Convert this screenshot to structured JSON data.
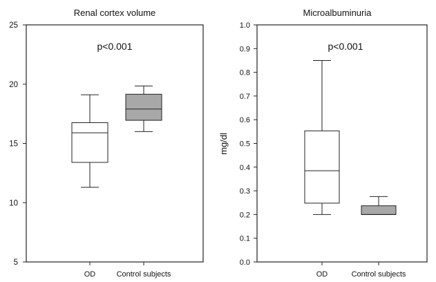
{
  "chart_data": [
    {
      "type": "boxplot",
      "title": "Renal cortex volume",
      "annotation": "p<0.001",
      "xlabel": "",
      "ylabel": "",
      "ylim": [
        5,
        25
      ],
      "yticks": [
        "5",
        "10",
        "15",
        "20",
        "25"
      ],
      "ytick_values": [
        5,
        10,
        15,
        20,
        25
      ],
      "grid": false,
      "categories": [
        "OD",
        "Control subjects"
      ],
      "fill_colors": [
        "#ffffff",
        "#a8a8a8"
      ],
      "boxes": [
        {
          "name": "OD",
          "min": 11.3,
          "q1": 13.4,
          "median": 15.9,
          "q3": 16.75,
          "max": 19.1
        },
        {
          "name": "Control subjects",
          "min": 16.0,
          "q1": 16.95,
          "median": 17.9,
          "q3": 19.15,
          "max": 19.85
        }
      ]
    },
    {
      "type": "boxplot",
      "title": "Microalbuminuria",
      "annotation": "p<0.001",
      "xlabel": "",
      "ylabel": "mg/dl",
      "ylim": [
        0.0,
        1.0
      ],
      "yticks": [
        "0.0",
        "0.1",
        "0.2",
        "0.3",
        "0.4",
        "0.5",
        "0.6",
        "0.7",
        "0.8",
        "0.9",
        "1.0"
      ],
      "ytick_values": [
        0.0,
        0.1,
        0.2,
        0.3,
        0.4,
        0.5,
        0.6,
        0.7,
        0.8,
        0.9,
        1.0
      ],
      "grid": false,
      "categories": [
        "OD",
        "Control subjects"
      ],
      "fill_colors": [
        "#ffffff",
        "#a8a8a8"
      ],
      "boxes": [
        {
          "name": "OD",
          "min": 0.2,
          "q1": 0.248,
          "median": 0.385,
          "q3": 0.553,
          "max": 0.85
        },
        {
          "name": "Control subjects",
          "min": 0.2,
          "q1": 0.2,
          "median": 0.2,
          "q3": 0.237,
          "max": 0.276
        }
      ]
    }
  ]
}
